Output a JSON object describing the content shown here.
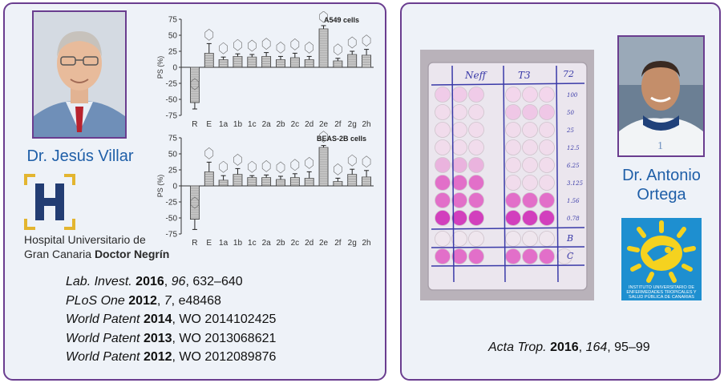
{
  "left": {
    "person_name": "Dr. Jesús Villar",
    "hospital": {
      "line1": "Hospital Universitario de",
      "line2_a": "Gran Canaria ",
      "line2_b": "Doctor Negrín",
      "logo_letter": "H"
    },
    "charts": {
      "ylabel": "PS (%)",
      "y_ticks": [
        "75",
        "50",
        "25",
        "0",
        "-25",
        "-50",
        "-75"
      ],
      "categories": [
        "R",
        "E",
        "1a",
        "1b",
        "1c",
        "2a",
        "2b",
        "2c",
        "2d",
        "2e",
        "2f",
        "2g",
        "2h"
      ],
      "top_title": "A549 cells",
      "bottom_title": "BEAS-2B cells"
    },
    "references": [
      {
        "journal": "Lab. Invest.",
        "year": "2016",
        "vol": "96",
        "rest": ", 632–640"
      },
      {
        "journal": "PLoS One",
        "year": "2012",
        "vol": "7",
        "rest": ", e48468"
      },
      {
        "journal": "World Patent",
        "year": "2014",
        "vol": "",
        "rest": ", WO 2014102425"
      },
      {
        "journal": "World Patent",
        "year": "2013",
        "vol": "",
        "rest": ", WO 2013068621"
      },
      {
        "journal": "World Patent",
        "year": "2012",
        "vol": "",
        "rest": ", WO 2012089876"
      }
    ]
  },
  "right": {
    "person_name_line1": "Dr. Antonio",
    "person_name_line2": "Ortega",
    "plate_labels": {
      "neff": "Neff",
      "t3": "T3",
      "n72": "72",
      "row_labels": [
        "100",
        "50",
        "25",
        "12.5",
        "6.25",
        "3.125",
        "1.56",
        "0.78",
        "B",
        "C"
      ]
    },
    "institute_text": "INSTITUTO UNIVERSITARIO DE ENFERMEDADES TROPICALES Y SALUD PÚBLICA DE CANARIAS",
    "reference": {
      "journal": "Acta Trop.",
      "year": "2016",
      "vol": "164",
      "rest": ", 95–99"
    }
  },
  "chart_data": [
    {
      "type": "bar",
      "title": "A549 cells",
      "ylabel": "PS (%)",
      "ylim": [
        -75,
        75
      ],
      "categories": [
        "R",
        "E",
        "1a",
        "1b",
        "1c",
        "2a",
        "2b",
        "2c",
        "2d",
        "2e",
        "2f",
        "2g",
        "2h"
      ],
      "values": [
        -55,
        22,
        12,
        17,
        16,
        17,
        12,
        15,
        12,
        60,
        10,
        20,
        19
      ],
      "errors": [
        10,
        15,
        4,
        4,
        4,
        6,
        5,
        7,
        5,
        5,
        4,
        5,
        9
      ]
    },
    {
      "type": "bar",
      "title": "BEAS-2B cells",
      "ylabel": "PS (%)",
      "ylim": [
        -75,
        75
      ],
      "categories": [
        "R",
        "E",
        "1a",
        "1b",
        "1c",
        "2a",
        "2b",
        "2c",
        "2d",
        "2e",
        "2f",
        "2g",
        "2h"
      ],
      "values": [
        -52,
        22,
        9,
        18,
        13,
        13,
        10,
        13,
        12,
        60,
        7,
        18,
        14
      ],
      "errors": [
        16,
        15,
        7,
        9,
        3,
        4,
        5,
        6,
        10,
        3,
        5,
        8,
        10
      ]
    }
  ]
}
